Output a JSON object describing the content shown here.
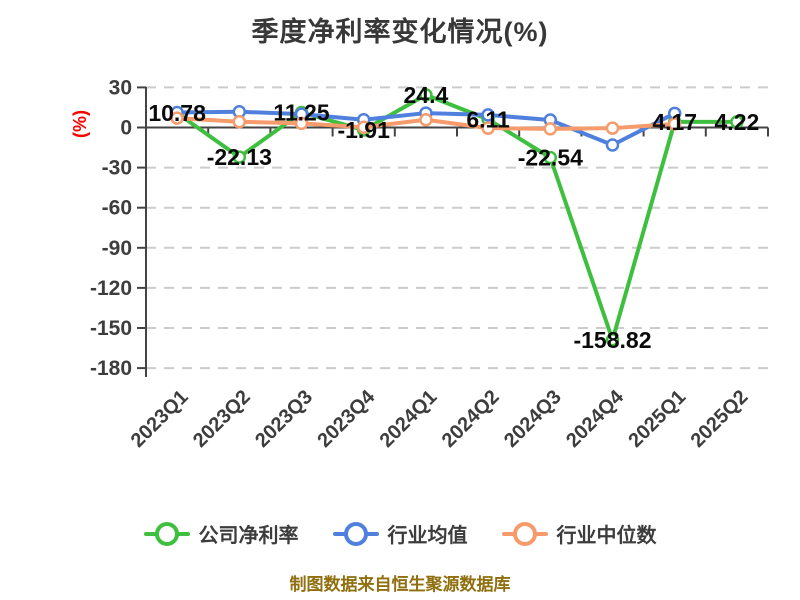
{
  "chart_data": {
    "type": "line",
    "title": "季度净利率变化情况(%)",
    "ylabel": "(%)",
    "ylabel_color": "#ff0000",
    "categories": [
      "2023Q1",
      "2023Q2",
      "2023Q3",
      "2023Q4",
      "2024Q1",
      "2024Q2",
      "2024Q3",
      "2024Q4",
      "2025Q1",
      "2025Q2"
    ],
    "series": [
      {
        "key": "company-net-margin",
        "name": "公司净利率",
        "color": "#3fbf3f",
        "values": [
          10.78,
          -22.13,
          11.25,
          -1.91,
          24.4,
          6.11,
          -22.54,
          -158.82,
          4.17,
          4.22
        ],
        "labels": [
          "10.78",
          "-22.13",
          "11.25",
          "-1.91",
          "24.4",
          "6.11",
          "-22.54",
          "-158.82",
          "4.17",
          "4.22"
        ],
        "show_labels": true
      },
      {
        "key": "industry-mean",
        "name": "行业均值",
        "color": "#5080dd",
        "values": [
          11.2,
          11.8,
          10.0,
          5.8,
          10.8,
          9.4,
          5.6,
          -13.1,
          10.6
        ],
        "show_labels": false
      },
      {
        "key": "industry-median",
        "name": "行业中位数",
        "color": "#f59b6c",
        "values": [
          7.0,
          4.3,
          3.1,
          0.2,
          5.8,
          -0.5,
          -1.0,
          -0.5,
          2.6
        ],
        "show_labels": false
      }
    ],
    "ylim": [
      -180,
      30
    ],
    "ytick_step": 30,
    "yticks": [
      "30",
      "0",
      "-30",
      "-60",
      "-90",
      "-120",
      "-150",
      "-180"
    ],
    "grid": "horizontal-dashed",
    "grid_color": "#cccccc",
    "axis_color": "#444444",
    "marker": "hollow-circle",
    "legend_position": "bottom",
    "footer": "制图数据来自恒生聚源数据库"
  }
}
